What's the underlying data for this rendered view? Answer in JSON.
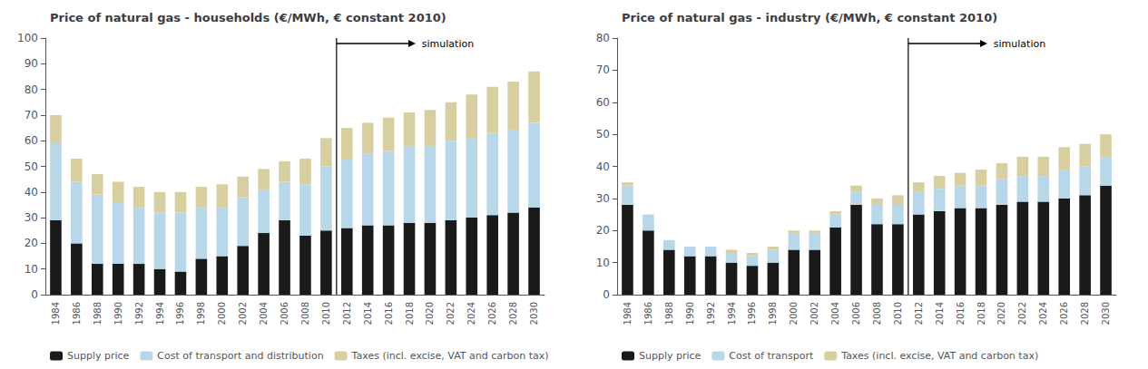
{
  "chart_data": [
    {
      "type": "bar",
      "title": "Price of natural gas - households (€/MWh, € constant 2010)",
      "categories": [
        "1984",
        "1986",
        "1988",
        "1990",
        "1992",
        "1994",
        "1996",
        "1998",
        "2000",
        "2002",
        "2004",
        "2006",
        "2008",
        "2010",
        "2012",
        "2014",
        "2016",
        "2018",
        "2020",
        "2022",
        "2024",
        "2026",
        "2028",
        "2030"
      ],
      "series": [
        {
          "name": "Supply price",
          "color": "#1a1a1a",
          "values": [
            29,
            20,
            12,
            12,
            12,
            10,
            9,
            14,
            15,
            19,
            24,
            29,
            23,
            25,
            26,
            27,
            27,
            28,
            28,
            29,
            30,
            31,
            32,
            34
          ]
        },
        {
          "name": "Cost of transport and distribution",
          "color": "#b8d8ea",
          "values": [
            30,
            24,
            27,
            24,
            22,
            22,
            23,
            20,
            19,
            19,
            17,
            15,
            20,
            25,
            27,
            28,
            29,
            30,
            30,
            31,
            31,
            32,
            32,
            33
          ]
        },
        {
          "name": "Taxes (incl. excise, VAT and carbon tax)",
          "color": "#d8cfa0",
          "values": [
            11,
            9,
            8,
            8,
            8,
            8,
            8,
            8,
            9,
            8,
            8,
            8,
            10,
            11,
            12,
            12,
            13,
            13,
            14,
            15,
            17,
            18,
            19,
            20
          ]
        }
      ],
      "stacked": true,
      "ylim": [
        0,
        100
      ],
      "yticks": [
        0,
        10,
        20,
        30,
        40,
        50,
        60,
        70,
        80,
        90,
        100
      ],
      "grid": false,
      "legend": "lower left",
      "annotations": [
        {
          "text": "simulation",
          "after": "2010"
        }
      ]
    },
    {
      "type": "bar",
      "title": "Price of natural gas - industry (€/MWh, € constant 2010)",
      "categories": [
        "1984",
        "1986",
        "1988",
        "1990",
        "1992",
        "1994",
        "1996",
        "1998",
        "2000",
        "2002",
        "2004",
        "2006",
        "2008",
        "2010",
        "2012",
        "2014",
        "2016",
        "2018",
        "2020",
        "2022",
        "2024",
        "2026",
        "2028",
        "2030"
      ],
      "series": [
        {
          "name": "Supply price",
          "color": "#1a1a1a",
          "values": [
            28,
            20,
            14,
            12,
            12,
            10,
            9,
            10,
            14,
            14,
            21,
            28,
            22,
            22,
            25,
            26,
            27,
            27,
            28,
            29,
            29,
            30,
            31,
            34
          ]
        },
        {
          "name": "Cost of transport",
          "color": "#b8d8ea",
          "values": [
            6,
            5,
            3,
            3,
            3,
            3,
            3,
            4,
            5,
            5,
            4,
            4,
            6,
            6,
            7,
            7,
            7,
            7,
            8,
            8,
            8,
            9,
            9,
            9
          ]
        },
        {
          "name": "Taxes (incl. excise, VAT and carbon tax)",
          "color": "#d8cfa0",
          "values": [
            1,
            0,
            0,
            0,
            0,
            1,
            1,
            1,
            1,
            1,
            1,
            2,
            2,
            3,
            3,
            4,
            4,
            5,
            5,
            6,
            6,
            7,
            7,
            7
          ]
        }
      ],
      "stacked": true,
      "ylim": [
        0,
        80
      ],
      "yticks": [
        0,
        10,
        20,
        30,
        40,
        50,
        60,
        70,
        80
      ],
      "grid": false,
      "legend": "lower left",
      "annotations": [
        {
          "text": "simulation",
          "after": "2010"
        }
      ]
    }
  ]
}
